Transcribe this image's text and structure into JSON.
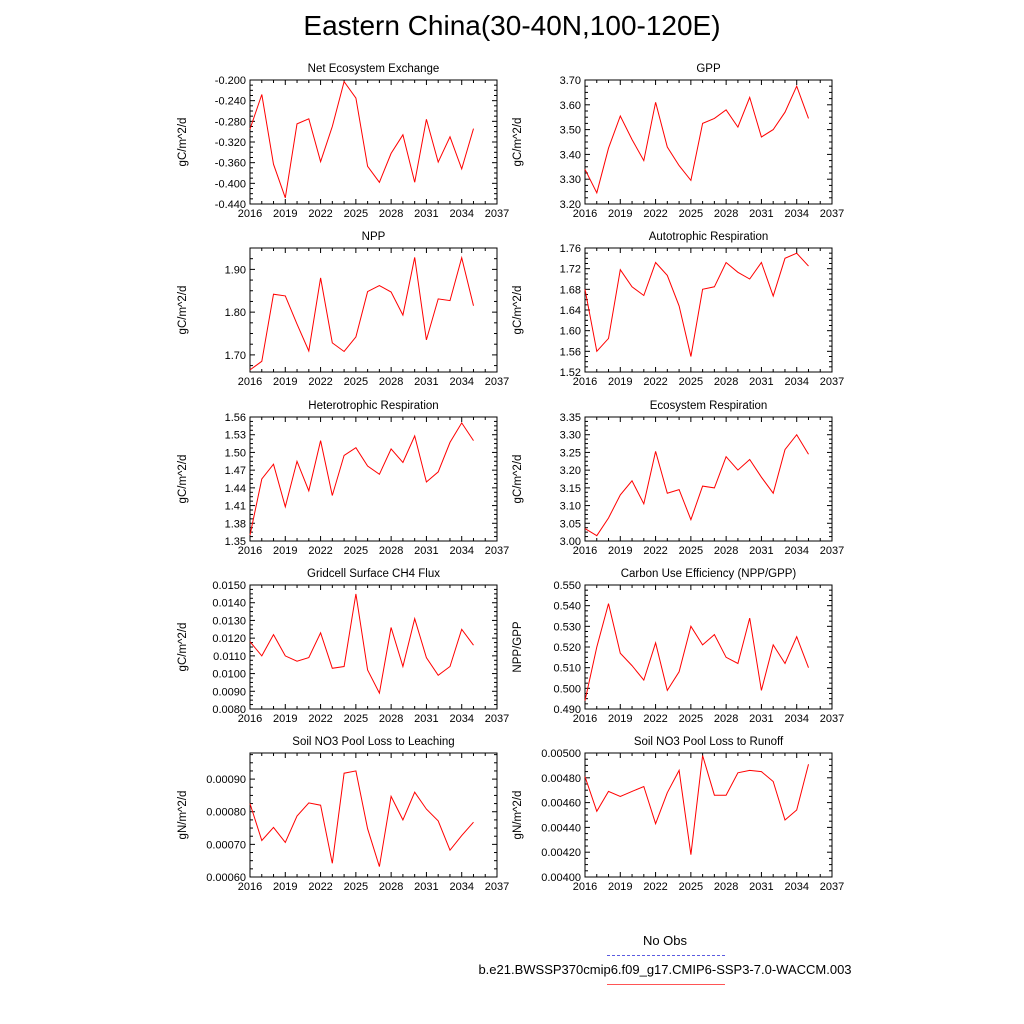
{
  "title": "Eastern China(30-40N,100-120E)",
  "legend": {
    "obs_label": "No Obs",
    "case_label": "b.e21.BWSSP370cmip6.f09_g17.CMIP6-SSP3-7.0-WACCM.003",
    "obs_color": "#5b5be0",
    "case_color": "#ff0000"
  },
  "chart_data": [
    {
      "type": "line",
      "title": "Net Ecosystem Exchange",
      "ylabel": "gC/m^2/d",
      "xlim": [
        2016,
        2037
      ],
      "xticks": [
        "2016",
        "2019",
        "2022",
        "2025",
        "2028",
        "2031",
        "2034",
        "2037"
      ],
      "ylim": [
        -0.44,
        -0.2
      ],
      "yticks": [
        "-0.200",
        "-0.240",
        "-0.280",
        "-0.320",
        "-0.360",
        "-0.400",
        "-0.440"
      ],
      "x": [
        2016,
        2017,
        2018,
        2019,
        2020,
        2021,
        2022,
        2023,
        2024,
        2025,
        2026,
        2027,
        2028,
        2029,
        2030,
        2031,
        2032,
        2033,
        2034,
        2035
      ],
      "series": [
        {
          "values": [
            -0.295,
            -0.228,
            -0.363,
            -0.428,
            -0.285,
            -0.275,
            -0.358,
            -0.29,
            -0.203,
            -0.235,
            -0.367,
            -0.398,
            -0.342,
            -0.306,
            -0.398,
            -0.276,
            -0.359,
            -0.31,
            -0.372,
            -0.294
          ]
        }
      ]
    },
    {
      "type": "line",
      "title": "GPP",
      "ylabel": "gC/m^2/d",
      "xlim": [
        2016,
        2037
      ],
      "xticks": [
        "2016",
        "2019",
        "2022",
        "2025",
        "2028",
        "2031",
        "2034",
        "2037"
      ],
      "ylim": [
        3.2,
        3.7
      ],
      "yticks": [
        "3.70",
        "3.60",
        "3.50",
        "3.40",
        "3.30",
        "3.20"
      ],
      "x": [
        2016,
        2017,
        2018,
        2019,
        2020,
        2021,
        2022,
        2023,
        2024,
        2025,
        2026,
        2027,
        2028,
        2029,
        2030,
        2031,
        2032,
        2033,
        2034,
        2035
      ],
      "series": [
        {
          "values": [
            3.34,
            3.245,
            3.425,
            3.555,
            3.46,
            3.375,
            3.61,
            3.43,
            3.355,
            3.295,
            3.525,
            3.545,
            3.58,
            3.51,
            3.63,
            3.47,
            3.5,
            3.57,
            3.675,
            3.545
          ]
        }
      ]
    },
    {
      "type": "line",
      "title": "NPP",
      "ylabel": "gC/m^2/d",
      "xlim": [
        2016,
        2037
      ],
      "xticks": [
        "2016",
        "2019",
        "2022",
        "2025",
        "2028",
        "2031",
        "2034",
        "2037"
      ],
      "ylim": [
        1.66,
        1.95
      ],
      "yticks": [
        "1.90",
        "1.80",
        "1.70"
      ],
      "x": [
        2016,
        2017,
        2018,
        2019,
        2020,
        2021,
        2022,
        2023,
        2024,
        2025,
        2026,
        2027,
        2028,
        2029,
        2030,
        2031,
        2032,
        2033,
        2034,
        2035
      ],
      "series": [
        {
          "values": [
            1.665,
            1.685,
            1.842,
            1.838,
            1.772,
            1.709,
            1.88,
            1.728,
            1.708,
            1.742,
            1.848,
            1.862,
            1.847,
            1.793,
            1.928,
            1.735,
            1.831,
            1.827,
            1.927,
            1.815
          ]
        }
      ]
    },
    {
      "type": "line",
      "title": "Autotrophic Respiration",
      "ylabel": "gC/m^2/d",
      "xlim": [
        2016,
        2037
      ],
      "xticks": [
        "2016",
        "2019",
        "2022",
        "2025",
        "2028",
        "2031",
        "2034",
        "2037"
      ],
      "ylim": [
        1.52,
        1.76
      ],
      "yticks": [
        "1.76",
        "1.72",
        "1.68",
        "1.64",
        "1.60",
        "1.56",
        "1.52"
      ],
      "x": [
        2016,
        2017,
        2018,
        2019,
        2020,
        2021,
        2022,
        2023,
        2024,
        2025,
        2026,
        2027,
        2028,
        2029,
        2030,
        2031,
        2032,
        2033,
        2034,
        2035
      ],
      "series": [
        {
          "values": [
            1.68,
            1.56,
            1.585,
            1.718,
            1.685,
            1.668,
            1.732,
            1.707,
            1.648,
            1.55,
            1.68,
            1.685,
            1.732,
            1.713,
            1.7,
            1.732,
            1.667,
            1.74,
            1.75,
            1.725
          ]
        }
      ]
    },
    {
      "type": "line",
      "title": "Heterotrophic Respiration",
      "ylabel": "gC/m^2/d",
      "xlim": [
        2016,
        2037
      ],
      "xticks": [
        "2016",
        "2019",
        "2022",
        "2025",
        "2028",
        "2031",
        "2034",
        "2037"
      ],
      "ylim": [
        1.35,
        1.56
      ],
      "yticks": [
        "1.56",
        "1.53",
        "1.50",
        "1.47",
        "1.44",
        "1.41",
        "1.38",
        "1.35"
      ],
      "x": [
        2016,
        2017,
        2018,
        2019,
        2020,
        2021,
        2022,
        2023,
        2024,
        2025,
        2026,
        2027,
        2028,
        2029,
        2030,
        2031,
        2032,
        2033,
        2034,
        2035
      ],
      "series": [
        {
          "values": [
            1.36,
            1.455,
            1.48,
            1.408,
            1.485,
            1.435,
            1.52,
            1.427,
            1.495,
            1.508,
            1.477,
            1.463,
            1.506,
            1.483,
            1.528,
            1.45,
            1.467,
            1.517,
            1.55,
            1.52
          ]
        }
      ]
    },
    {
      "type": "line",
      "title": "Ecosystem Respiration",
      "ylabel": "gC/m^2/d",
      "xlim": [
        2016,
        2037
      ],
      "xticks": [
        "2016",
        "2019",
        "2022",
        "2025",
        "2028",
        "2031",
        "2034",
        "2037"
      ],
      "ylim": [
        3.0,
        3.35
      ],
      "yticks": [
        "3.35",
        "3.30",
        "3.25",
        "3.20",
        "3.15",
        "3.10",
        "3.05",
        "3.00"
      ],
      "x": [
        2016,
        2017,
        2018,
        2019,
        2020,
        2021,
        2022,
        2023,
        2024,
        2025,
        2026,
        2027,
        2028,
        2029,
        2030,
        2031,
        2032,
        2033,
        2034,
        2035
      ],
      "series": [
        {
          "values": [
            3.035,
            3.015,
            3.065,
            3.13,
            3.17,
            3.105,
            3.253,
            3.135,
            3.145,
            3.06,
            3.155,
            3.15,
            3.238,
            3.2,
            3.23,
            3.18,
            3.135,
            3.258,
            3.3,
            3.245
          ]
        }
      ]
    },
    {
      "type": "line",
      "title": "Gridcell Surface CH4 Flux",
      "ylabel": "gC/m^2/d",
      "xlim": [
        2016,
        2037
      ],
      "xticks": [
        "2016",
        "2019",
        "2022",
        "2025",
        "2028",
        "2031",
        "2034",
        "2037"
      ],
      "ylim": [
        0.008,
        0.015
      ],
      "yticks": [
        "0.0150",
        "0.0140",
        "0.0130",
        "0.0120",
        "0.0110",
        "0.0100",
        "0.0090",
        "0.0080"
      ],
      "x": [
        2016,
        2017,
        2018,
        2019,
        2020,
        2021,
        2022,
        2023,
        2024,
        2025,
        2026,
        2027,
        2028,
        2029,
        2030,
        2031,
        2032,
        2033,
        2034,
        2035
      ],
      "series": [
        {
          "values": [
            0.0118,
            0.011,
            0.0122,
            0.011,
            0.0107,
            0.0109,
            0.0123,
            0.0103,
            0.0104,
            0.0145,
            0.0102,
            0.0089,
            0.0126,
            0.0104,
            0.0131,
            0.0109,
            0.0099,
            0.0104,
            0.0125,
            0.0116
          ]
        }
      ]
    },
    {
      "type": "line",
      "title": "Carbon Use Efficiency (NPP/GPP)",
      "ylabel": "NPP/GPP",
      "xlim": [
        2016,
        2037
      ],
      "xticks": [
        "2016",
        "2019",
        "2022",
        "2025",
        "2028",
        "2031",
        "2034",
        "2037"
      ],
      "ylim": [
        0.49,
        0.55
      ],
      "yticks": [
        "0.550",
        "0.540",
        "0.530",
        "0.520",
        "0.510",
        "0.500",
        "0.490"
      ],
      "x": [
        2016,
        2017,
        2018,
        2019,
        2020,
        2021,
        2022,
        2023,
        2024,
        2025,
        2026,
        2027,
        2028,
        2029,
        2030,
        2031,
        2032,
        2033,
        2034,
        2035
      ],
      "series": [
        {
          "values": [
            0.494,
            0.52,
            0.541,
            0.517,
            0.511,
            0.504,
            0.522,
            0.499,
            0.508,
            0.53,
            0.521,
            0.526,
            0.515,
            0.512,
            0.534,
            0.499,
            0.521,
            0.512,
            0.525,
            0.51
          ]
        }
      ]
    },
    {
      "type": "line",
      "title": "Soil NO3 Pool Loss to Leaching",
      "ylabel": "gN/m^2/d",
      "xlim": [
        2016,
        2037
      ],
      "xticks": [
        "2016",
        "2019",
        "2022",
        "2025",
        "2028",
        "2031",
        "2034",
        "2037"
      ],
      "ylim": [
        0.0006,
        0.00098
      ],
      "yticks": [
        "0.00090",
        "0.00080",
        "0.00070",
        "0.00060"
      ],
      "x": [
        2016,
        2017,
        2018,
        2019,
        2020,
        2021,
        2022,
        2023,
        2024,
        2025,
        2026,
        2027,
        2028,
        2029,
        2030,
        2031,
        2032,
        2033,
        2034,
        2035
      ],
      "series": [
        {
          "values": [
            0.000825,
            0.000712,
            0.000752,
            0.000706,
            0.000787,
            0.000827,
            0.00082,
            0.000642,
            0.000918,
            0.000925,
            0.000748,
            0.000632,
            0.000847,
            0.000775,
            0.00086,
            0.000808,
            0.000772,
            0.000682,
            0.000727,
            0.000768
          ]
        }
      ]
    },
    {
      "type": "line",
      "title": "Soil NO3 Pool Loss to Runoff",
      "ylabel": "gN/m^2/d",
      "xlim": [
        2016,
        2037
      ],
      "xticks": [
        "2016",
        "2019",
        "2022",
        "2025",
        "2028",
        "2031",
        "2034",
        "2037"
      ],
      "ylim": [
        0.004,
        0.005
      ],
      "yticks": [
        "0.00500",
        "0.00480",
        "0.00460",
        "0.00440",
        "0.00420",
        "0.00400"
      ],
      "x": [
        2016,
        2017,
        2018,
        2019,
        2020,
        2021,
        2022,
        2023,
        2024,
        2025,
        2026,
        2027,
        2028,
        2029,
        2030,
        2031,
        2032,
        2033,
        2034,
        2035
      ],
      "series": [
        {
          "values": [
            0.00481,
            0.00453,
            0.00469,
            0.00465,
            0.00469,
            0.00473,
            0.00443,
            0.00468,
            0.00486,
            0.00418,
            0.00498,
            0.00466,
            0.00466,
            0.00484,
            0.00486,
            0.00485,
            0.00477,
            0.00446,
            0.00454,
            0.00491
          ]
        }
      ]
    }
  ]
}
